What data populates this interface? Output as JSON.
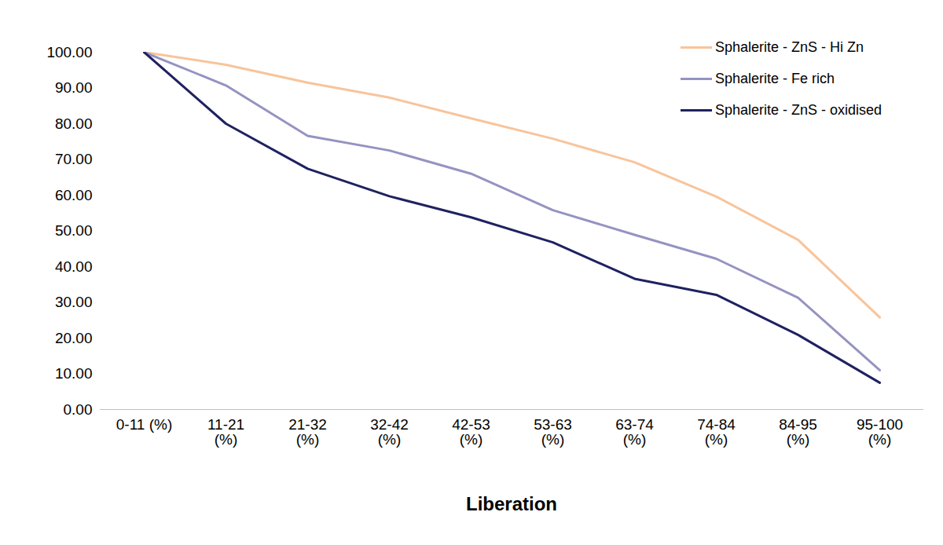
{
  "chart_data": {
    "type": "line",
    "x_label": "Liberation",
    "categories": [
      "0-11 (%)",
      "11-21 (%)",
      "21-32 (%)",
      "32-42 (%)",
      "42-53 (%)",
      "53-63 (%)",
      "63-74 (%)",
      "74-84 (%)",
      "84-95 (%)",
      "95-100 (%)"
    ],
    "series": [
      {
        "name": "Sphalerite - ZnS - Hi Zn",
        "color": "#f8c49b",
        "values": [
          100,
          96.5,
          91.5,
          87.3,
          81.5,
          75.8,
          69.2,
          59.6,
          47.5,
          25.8
        ]
      },
      {
        "name": "Sphalerite - Fe rich",
        "color": "#9593c1",
        "values": [
          100,
          90.7,
          76.6,
          72.5,
          66.0,
          55.8,
          48.9,
          42.2,
          31.3,
          11.0
        ]
      },
      {
        "name": "Sphalerite - ZnS - oxidised",
        "color": "#1f2160",
        "values": [
          100,
          80.0,
          67.4,
          59.7,
          53.8,
          46.8,
          36.6,
          32.1,
          20.9,
          7.5
        ]
      }
    ],
    "ylim": [
      0,
      100
    ],
    "yticks": [
      {
        "value": 0,
        "label": "0.00"
      },
      {
        "value": 10,
        "label": "10.00"
      },
      {
        "value": 20,
        "label": "20.00"
      },
      {
        "value": 30,
        "label": "30.00"
      },
      {
        "value": 40,
        "label": "40.00"
      },
      {
        "value": 50,
        "label": "50.00"
      },
      {
        "value": 60,
        "label": "60.00"
      },
      {
        "value": 70,
        "label": "70.00"
      },
      {
        "value": 80,
        "label": "80.00"
      },
      {
        "value": 90,
        "label": "90.00"
      },
      {
        "value": 100,
        "label": "100.00"
      }
    ],
    "grid": false,
    "legend": "top-right"
  }
}
